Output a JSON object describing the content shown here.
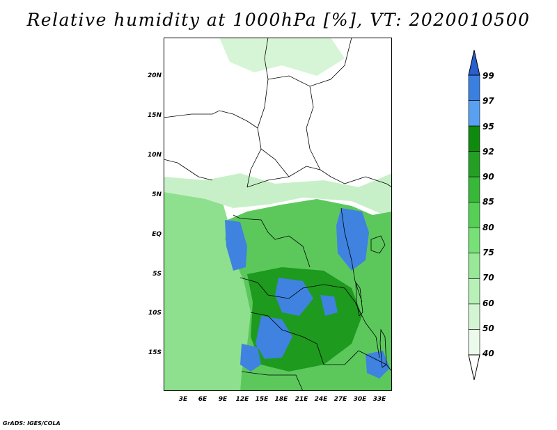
{
  "title": "Relative humidity at 1000hPa [%], VT: 2020010500",
  "footer": "GrADS: IGES/COLA",
  "map": {
    "lat_labels": [
      "20N",
      "15N",
      "10N",
      "5N",
      "EQ",
      "5S",
      "10S",
      "15S"
    ],
    "lon_labels": [
      "3E",
      "6E",
      "9E",
      "12E",
      "15E",
      "18E",
      "21E",
      "24E",
      "27E",
      "30E",
      "33E"
    ]
  },
  "colorbar": {
    "labels": [
      "99",
      "97",
      "95",
      "92",
      "90",
      "85",
      "80",
      "75",
      "70",
      "60",
      "50",
      "40"
    ],
    "colors": [
      "#2a5fd0",
      "#3b7fe0",
      "#5aa0f0",
      "#0e8a0e",
      "#23a023",
      "#38b838",
      "#55d055",
      "#78e078",
      "#98e898",
      "#b8f0b8",
      "#d4f5d4",
      "#ebfaeb"
    ]
  },
  "palette": {
    "ocean": "#8ee08e",
    "land_dry": "#ffffff",
    "land_moist": "#5cc85c",
    "land_wet": "#1e9a1e",
    "very_wet": "#3f82e0"
  }
}
